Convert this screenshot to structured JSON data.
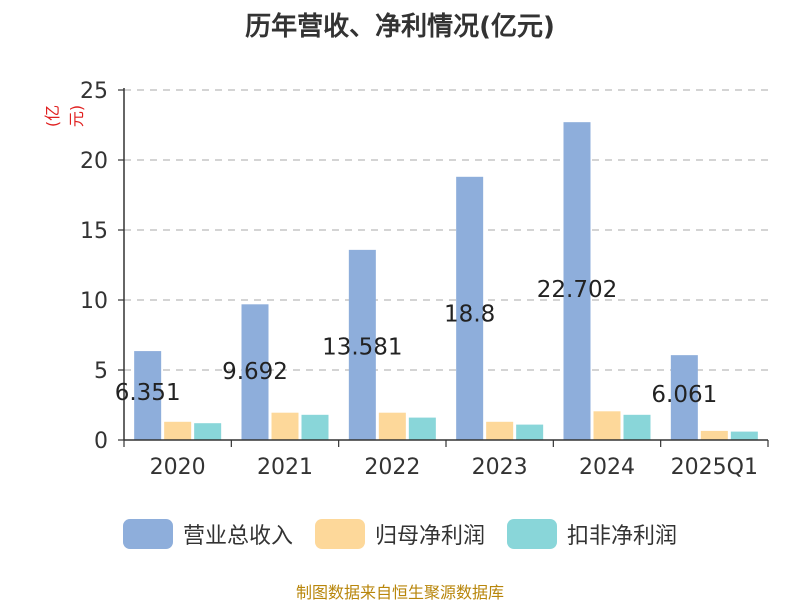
{
  "chart_data": {
    "type": "bar",
    "title": "历年营收、净利情况(亿元)",
    "ylabel": "(亿元)",
    "categories": [
      "2020",
      "2021",
      "2022",
      "2023",
      "2024",
      "2025Q1"
    ],
    "series": [
      {
        "name": "营业总收入",
        "color": "#8eaedb",
        "values": [
          6.351,
          9.692,
          13.581,
          18.8,
          22.702,
          6.061
        ]
      },
      {
        "name": "归母净利润",
        "color": "#fdd89a",
        "values": [
          1.3,
          1.95,
          1.95,
          1.3,
          2.05,
          0.65
        ]
      },
      {
        "name": "扣非净利润",
        "color": "#89d6d9",
        "values": [
          1.2,
          1.8,
          1.6,
          1.1,
          1.8,
          0.6
        ]
      }
    ],
    "data_labels": [
      "6.351",
      "9.692",
      "13.581",
      "18.8",
      "22.702",
      "6.061"
    ],
    "ylim": [
      0,
      25
    ],
    "yticks": [
      0,
      5,
      10,
      15,
      20,
      25
    ],
    "grid": true,
    "legend_position": "bottom"
  },
  "source_note": "制图数据来自恒生聚源数据库"
}
